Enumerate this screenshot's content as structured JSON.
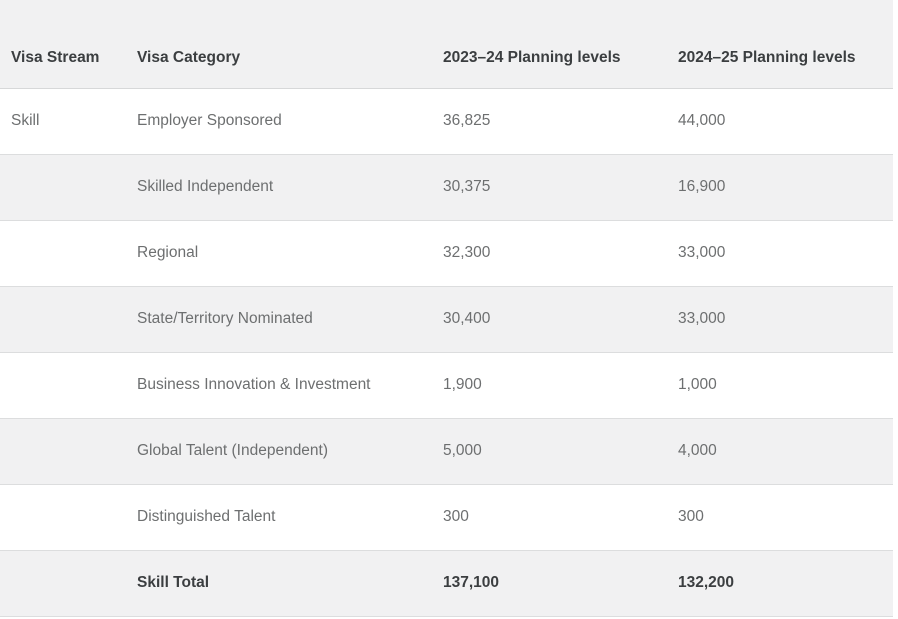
{
  "colors": {
    "row_alt_background": "#f1f1f2",
    "row_background": "#ffffff",
    "border": "#dcddde",
    "header_text": "#3b3e40",
    "body_text": "#6d6f70"
  },
  "table": {
    "headers": [
      "Visa Stream",
      "Visa Category",
      "2023–24 Planning levels",
      "2024–25 Planning levels"
    ],
    "rows": [
      {
        "visa_stream": "Skill",
        "visa_category": "Employer Sponsored",
        "planning_2023_24": "36,825",
        "planning_2024_25": "44,000"
      },
      {
        "visa_stream": "",
        "visa_category": "Skilled Independent",
        "planning_2023_24": "30,375",
        "planning_2024_25": "16,900"
      },
      {
        "visa_stream": "",
        "visa_category": "Regional",
        "planning_2023_24": "32,300",
        "planning_2024_25": "33,000"
      },
      {
        "visa_stream": "",
        "visa_category": "State/Territory Nominated",
        "planning_2023_24": "30,400",
        "planning_2024_25": "33,000"
      },
      {
        "visa_stream": "",
        "visa_category": "Business Innovation & Investment",
        "planning_2023_24": "1,900",
        "planning_2024_25": "1,000"
      },
      {
        "visa_stream": "",
        "visa_category": "Global Talent (Independent)",
        "planning_2023_24": "5,000",
        "planning_2024_25": "4,000"
      },
      {
        "visa_stream": "",
        "visa_category": "Distinguished Talent",
        "planning_2023_24": "300",
        "planning_2024_25": "300"
      },
      {
        "visa_stream": "",
        "visa_category": "Skill Total",
        "planning_2023_24": "137,100",
        "planning_2024_25": "132,200"
      }
    ]
  }
}
